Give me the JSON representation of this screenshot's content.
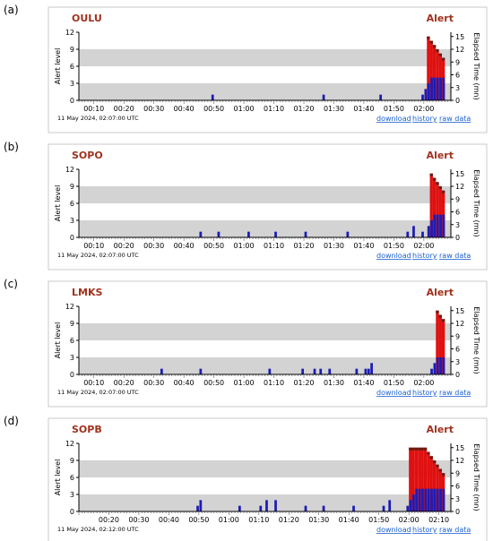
{
  "figure": {
    "panels": [
      {
        "letter": "(a)",
        "station": "OULU",
        "status": "Alert",
        "timestamp": "11 May 2024, 02:07:00 UTC",
        "links": [
          "download",
          "history",
          "raw data"
        ]
      },
      {
        "letter": "(b)",
        "station": "SOPO",
        "status": "Alert",
        "timestamp": "11 May 2024, 02:07:00 UTC",
        "links": [
          "download",
          "history",
          "raw data"
        ]
      },
      {
        "letter": "(c)",
        "station": "LMKS",
        "status": "Alert",
        "timestamp": "11 May 2024, 02:07:00 UTC",
        "links": [
          "download",
          "history",
          "raw data"
        ]
      },
      {
        "letter": "(d)",
        "station": "SOPB",
        "status": "Alert",
        "timestamp": "11 May 2024, 02:12:00 UTC",
        "links": [
          "download",
          "history",
          "raw data"
        ]
      }
    ]
  },
  "colors": {
    "station_text": "#a0321e",
    "alert_text": "#a0321e",
    "link": "#1a5fd0",
    "band": "#d3d3d3",
    "blue_bar": "#1c1cb4",
    "red_bar": "#e01010",
    "dark_bar": "#6b1a10",
    "axis": "#000000"
  },
  "chart_data": [
    {
      "type": "bar",
      "title": "OULU",
      "ylabel": "Alert level",
      "y2label": "Elapsed Time (mn)",
      "ylim": [
        0,
        12
      ],
      "yticks": [
        "0",
        "3",
        "6",
        "9",
        "12"
      ],
      "y2lim": [
        0,
        16
      ],
      "y2ticks": [
        "0",
        "3",
        "6",
        "9",
        "12",
        "15"
      ],
      "xlim": [
        "00:05",
        "02:09"
      ],
      "xticks": [
        "00:10",
        "00:20",
        "00:30",
        "00:40",
        "00:50",
        "01:00",
        "01:10",
        "01:20",
        "01:30",
        "01:40",
        "01:50",
        "02:00"
      ],
      "bands": [
        [
          0,
          3
        ],
        [
          6,
          9
        ]
      ],
      "alert_level": [
        {
          "time": "00:50",
          "level": 1
        },
        {
          "time": "01:27",
          "level": 1
        },
        {
          "time": "01:46",
          "level": 1
        },
        {
          "time": "02:00",
          "level": 1
        },
        {
          "time": "02:01",
          "level": 2
        },
        {
          "time": "02:02",
          "level": 3
        },
        {
          "time": "02:03",
          "level": 4
        },
        {
          "time": "02:04",
          "level": 4
        },
        {
          "time": "02:05",
          "level": 4
        },
        {
          "time": "02:06",
          "level": 4
        },
        {
          "time": "02:07",
          "level": 4
        }
      ],
      "elapsed_time_mn": [
        {
          "time": "02:02",
          "value": 15
        },
        {
          "time": "02:03",
          "value": 14
        },
        {
          "time": "02:04",
          "value": 13
        },
        {
          "time": "02:05",
          "value": 12
        },
        {
          "time": "02:06",
          "value": 11
        },
        {
          "time": "02:07",
          "value": 10
        }
      ]
    },
    {
      "type": "bar",
      "title": "SOPO",
      "ylabel": "Alert level",
      "y2label": "Elapsed Time (mn)",
      "ylim": [
        0,
        12
      ],
      "yticks": [
        "0",
        "3",
        "6",
        "9",
        "12"
      ],
      "y2lim": [
        0,
        16
      ],
      "y2ticks": [
        "0",
        "3",
        "6",
        "9",
        "12",
        "15"
      ],
      "xlim": [
        "00:05",
        "02:09"
      ],
      "xticks": [
        "00:10",
        "00:20",
        "00:30",
        "00:40",
        "00:50",
        "01:00",
        "01:10",
        "01:20",
        "01:30",
        "01:40",
        "01:50",
        "02:00"
      ],
      "bands": [
        [
          0,
          3
        ],
        [
          6,
          9
        ]
      ],
      "alert_level": [
        {
          "time": "00:46",
          "level": 1
        },
        {
          "time": "00:52",
          "level": 1
        },
        {
          "time": "01:02",
          "level": 1
        },
        {
          "time": "01:11",
          "level": 1
        },
        {
          "time": "01:21",
          "level": 1
        },
        {
          "time": "01:35",
          "level": 1
        },
        {
          "time": "01:55",
          "level": 1
        },
        {
          "time": "01:57",
          "level": 2
        },
        {
          "time": "02:00",
          "level": 1
        },
        {
          "time": "02:02",
          "level": 2
        },
        {
          "time": "02:03",
          "level": 3
        },
        {
          "time": "02:04",
          "level": 4
        },
        {
          "time": "02:05",
          "level": 4
        },
        {
          "time": "02:06",
          "level": 4
        },
        {
          "time": "02:07",
          "level": 4
        }
      ],
      "elapsed_time_mn": [
        {
          "time": "02:03",
          "value": 15
        },
        {
          "time": "02:04",
          "value": 14
        },
        {
          "time": "02:05",
          "value": 13
        },
        {
          "time": "02:06",
          "value": 12
        },
        {
          "time": "02:07",
          "value": 11
        }
      ]
    },
    {
      "type": "bar",
      "title": "LMKS",
      "ylabel": "Alert level",
      "y2label": "Elapsed Time (mn)",
      "ylim": [
        0,
        12
      ],
      "yticks": [
        "0",
        "3",
        "6",
        "9",
        "12"
      ],
      "y2lim": [
        0,
        16
      ],
      "y2ticks": [
        "0",
        "3",
        "6",
        "9",
        "12",
        "15"
      ],
      "xlim": [
        "00:05",
        "02:09"
      ],
      "xticks": [
        "00:10",
        "00:20",
        "00:30",
        "00:40",
        "00:50",
        "01:00",
        "01:10",
        "01:20",
        "01:30",
        "01:40",
        "01:50",
        "02:00"
      ],
      "bands": [
        [
          0,
          3
        ],
        [
          6,
          9
        ]
      ],
      "alert_level": [
        {
          "time": "00:33",
          "level": 1
        },
        {
          "time": "00:46",
          "level": 1
        },
        {
          "time": "01:09",
          "level": 1
        },
        {
          "time": "01:20",
          "level": 1
        },
        {
          "time": "01:24",
          "level": 1
        },
        {
          "time": "01:26",
          "level": 1
        },
        {
          "time": "01:29",
          "level": 1
        },
        {
          "time": "01:38",
          "level": 1
        },
        {
          "time": "01:41",
          "level": 1
        },
        {
          "time": "01:42",
          "level": 1
        },
        {
          "time": "01:43",
          "level": 2
        },
        {
          "time": "02:03",
          "level": 1
        },
        {
          "time": "02:04",
          "level": 2
        },
        {
          "time": "02:05",
          "level": 3
        },
        {
          "time": "02:06",
          "level": 3
        },
        {
          "time": "02:07",
          "level": 3
        }
      ],
      "elapsed_time_mn": [
        {
          "time": "02:05",
          "value": 15
        },
        {
          "time": "02:06",
          "value": 14
        },
        {
          "time": "02:07",
          "value": 13
        }
      ]
    },
    {
      "type": "bar",
      "title": "SOPB",
      "ylabel": "Alert level",
      "y2label": "Elapsed Time (mn)",
      "ylim": [
        0,
        12
      ],
      "yticks": [
        "0",
        "3",
        "6",
        "9",
        "12"
      ],
      "y2lim": [
        0,
        16
      ],
      "y2ticks": [
        "0",
        "3",
        "6",
        "9",
        "12",
        "15"
      ],
      "xlim": [
        "00:10",
        "02:14"
      ],
      "xticks": [
        "00:20",
        "00:30",
        "00:40",
        "00:50",
        "01:00",
        "01:10",
        "01:20",
        "01:30",
        "01:40",
        "01:50",
        "02:00",
        "02:10"
      ],
      "bands": [
        [
          0,
          3
        ],
        [
          6,
          9
        ]
      ],
      "alert_level": [
        {
          "time": "00:50",
          "level": 1
        },
        {
          "time": "00:51",
          "level": 2
        },
        {
          "time": "01:04",
          "level": 1
        },
        {
          "time": "01:11",
          "level": 1
        },
        {
          "time": "01:13",
          "level": 2
        },
        {
          "time": "01:16",
          "level": 2
        },
        {
          "time": "01:26",
          "level": 1
        },
        {
          "time": "01:32",
          "level": 1
        },
        {
          "time": "01:42",
          "level": 1
        },
        {
          "time": "01:52",
          "level": 1
        },
        {
          "time": "01:54",
          "level": 2
        },
        {
          "time": "02:00",
          "level": 1
        },
        {
          "time": "02:01",
          "level": 2
        },
        {
          "time": "02:02",
          "level": 3
        },
        {
          "time": "02:03",
          "level": 4
        },
        {
          "time": "02:04",
          "level": 4
        },
        {
          "time": "02:05",
          "level": 4
        },
        {
          "time": "02:06",
          "level": 4
        },
        {
          "time": "02:07",
          "level": 4
        },
        {
          "time": "02:08",
          "level": 4
        },
        {
          "time": "02:09",
          "level": 4
        },
        {
          "time": "02:10",
          "level": 4
        },
        {
          "time": "02:11",
          "level": 4
        },
        {
          "time": "02:12",
          "level": 4
        }
      ],
      "elapsed_time_mn": [
        {
          "time": "02:01",
          "value": 15
        },
        {
          "time": "02:02",
          "value": 15
        },
        {
          "time": "02:03",
          "value": 15
        },
        {
          "time": "02:04",
          "value": 15
        },
        {
          "time": "02:05",
          "value": 15
        },
        {
          "time": "02:06",
          "value": 15
        },
        {
          "time": "02:07",
          "value": 14
        },
        {
          "time": "02:08",
          "value": 13
        },
        {
          "time": "02:09",
          "value": 12
        },
        {
          "time": "02:10",
          "value": 11
        },
        {
          "time": "02:11",
          "value": 10
        },
        {
          "time": "02:12",
          "value": 9
        }
      ]
    }
  ]
}
